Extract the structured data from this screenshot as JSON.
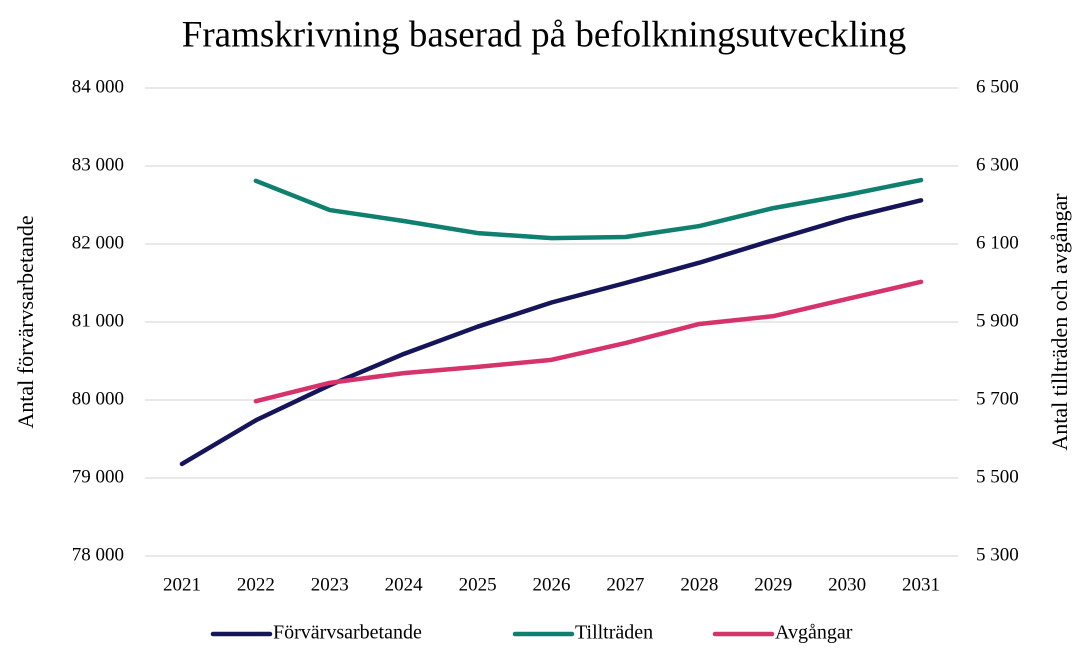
{
  "chart_data": {
    "type": "line",
    "title": "Framskrivning baserad på befolkningsutveckling",
    "y_label": "Antal förvärvsarbetande",
    "y2_label": "Antal tillträden och avgångar",
    "categories": [
      "2021",
      "2022",
      "2023",
      "2024",
      "2025",
      "2026",
      "2027",
      "2028",
      "2029",
      "2030",
      "2031"
    ],
    "series": [
      {
        "name": "Förvärvsarbetande",
        "color": "#16155a",
        "values": [
          79180,
          79740,
          80190,
          80590,
          80940,
          81250,
          81500,
          81760,
          82050,
          82330,
          82560
        ]
      },
      {
        "name": "Tillträden",
        "color": "#0f8070",
        "axis": "y2",
        "values": [
          null,
          6262,
          6187,
          6159,
          6128,
          6115,
          6118,
          6146,
          6192,
          6226,
          6264
        ]
      },
      {
        "name": "Avgångar",
        "color": "#d6336c",
        "axis": "y2",
        "values": [
          null,
          5697,
          5744,
          5769,
          5785,
          5803,
          5846,
          5895,
          5915,
          5959,
          6003
        ]
      }
    ],
    "ylim": [
      78000,
      84000
    ],
    "yticks": [
      {
        "value": 78000,
        "label": "78 000"
      },
      {
        "value": 79000,
        "label": "79 000"
      },
      {
        "value": 80000,
        "label": "80 000"
      },
      {
        "value": 81000,
        "label": "81 000"
      },
      {
        "value": 82000,
        "label": "82 000"
      },
      {
        "value": 83000,
        "label": "83 000"
      },
      {
        "value": 84000,
        "label": "84 000"
      }
    ],
    "y2lim": [
      5300,
      6500
    ],
    "y2ticks": [
      {
        "value": 5300,
        "label": "5 300"
      },
      {
        "value": 5500,
        "label": "5 500"
      },
      {
        "value": 5700,
        "label": "5 700"
      },
      {
        "value": 5900,
        "label": "5 900"
      },
      {
        "value": 6100,
        "label": "6 100"
      },
      {
        "value": 6300,
        "label": "6 300"
      },
      {
        "value": 6500,
        "label": "6 500"
      }
    ],
    "grid": true,
    "legend": "bottom"
  }
}
